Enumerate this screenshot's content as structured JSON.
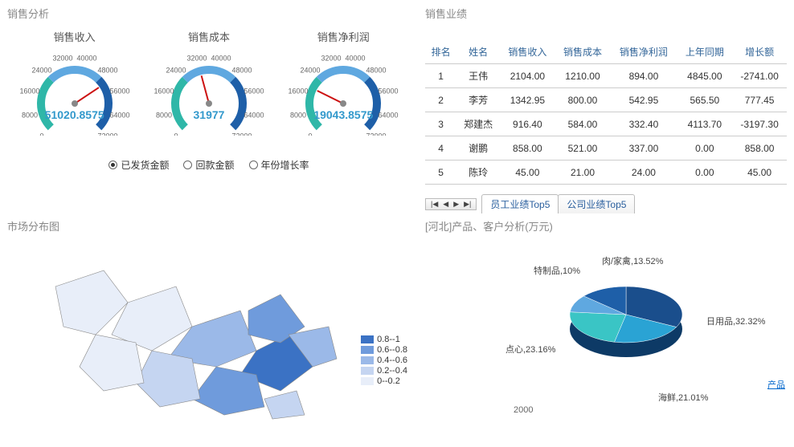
{
  "panels": {
    "sales_analysis": "销售分析",
    "sales_performance": "销售业绩",
    "market_map": "市场分布图",
    "product_customer": "[河北]产品、客户分析(万元)"
  },
  "gauges": {
    "ticks": [
      "0",
      "8000",
      "16000",
      "24000",
      "32000",
      "40000",
      "48000",
      "56000",
      "64000",
      "72000"
    ],
    "min": 0,
    "max": 72000,
    "arc_colors": {
      "low": "#2fb7a8",
      "mid": "#5fa8e0",
      "high": "#1e5fa8"
    },
    "needle_color": "#cc1111",
    "items": [
      {
        "label": "销售收入",
        "value_text": "51020.8575",
        "value": 51020.8575
      },
      {
        "label": "销售成本",
        "value_text": "31977",
        "value": 31977
      },
      {
        "label": "销售净利润",
        "value_text": "19043.8575",
        "value": 19043.8575
      }
    ]
  },
  "radios": {
    "selected": 0,
    "options": [
      "已发货金额",
      "回款金额",
      "年份增长率"
    ]
  },
  "perf_table": {
    "columns": [
      "排名",
      "姓名",
      "销售收入",
      "销售成本",
      "销售净利润",
      "上年同期",
      "增长额"
    ],
    "rows": [
      [
        "1",
        "王伟",
        "2104.00",
        "1210.00",
        "894.00",
        "4845.00",
        "-2741.00"
      ],
      [
        "2",
        "李芳",
        "1342.95",
        "800.00",
        "542.95",
        "565.50",
        "777.45"
      ],
      [
        "3",
        "郑建杰",
        "916.40",
        "584.00",
        "332.40",
        "4113.70",
        "-3197.30"
      ],
      [
        "4",
        "谢鹏",
        "858.00",
        "521.00",
        "337.00",
        "0.00",
        "858.00"
      ],
      [
        "5",
        "陈玲",
        "45.00",
        "21.00",
        "24.00",
        "0.00",
        "45.00"
      ]
    ]
  },
  "tabs": {
    "nav_icons": [
      "|◀",
      "◀",
      "▶",
      "▶|"
    ],
    "items": [
      "员工业绩Top5",
      "公司业绩Top5"
    ],
    "active": 0
  },
  "map_legend": {
    "rows": [
      {
        "color": "#3b72c4",
        "label": "0.8--1"
      },
      {
        "color": "#6f9bdc",
        "label": "0.6--0.8"
      },
      {
        "color": "#9bb9e8",
        "label": "0.4--0.6"
      },
      {
        "color": "#c5d5f1",
        "label": "0.2--0.4"
      },
      {
        "color": "#e8eef9",
        "label": "0--0.2"
      }
    ],
    "outline_color": "#888888",
    "province_fills": [
      "#e8eef9",
      "#c5d5f1",
      "#9bb9e8",
      "#6f9bdc",
      "#3b72c4"
    ]
  },
  "pie": {
    "slices": [
      {
        "label": "日用品",
        "pct": 32.32,
        "color": "#1a4e8c"
      },
      {
        "label": "海鲜",
        "pct": 21.01,
        "color": "#2aa3d4"
      },
      {
        "label": "点心",
        "pct": 23.16,
        "color": "#3ac5c5"
      },
      {
        "label": "特制品",
        "pct": 10.0,
        "color": "#5fa8e0"
      },
      {
        "label": "肉/家禽",
        "pct": 13.52,
        "color": "#1e5fa8"
      }
    ],
    "label_texts": {
      "riyongpin": "日用品,32.32%",
      "haixian": "海鲜,21.01%",
      "dianxin": "点心,23.16%",
      "tezhipin": "特制品,10%",
      "roujiaqin": "肉/家禽,13.52%"
    },
    "product_link": "产品",
    "mini_axis_tick": "2000"
  }
}
